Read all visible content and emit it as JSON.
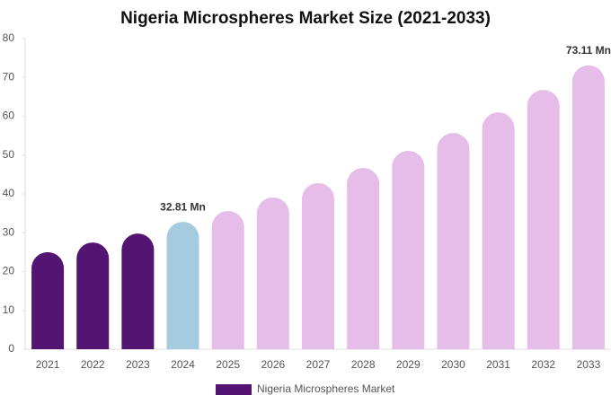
{
  "chart_data": {
    "type": "bar",
    "title": "Nigeria Microspheres Market Size (2021-2033)",
    "categories": [
      "2021",
      "2022",
      "2023",
      "2024",
      "2025",
      "2026",
      "2027",
      "2028",
      "2029",
      "2030",
      "2031",
      "2032",
      "2033"
    ],
    "series": [
      {
        "name": "Nigeria Microspheres Market",
        "color": "#541472",
        "colors": [
          "#541472",
          "#541472",
          "#541472",
          "#a4cbde",
          "#e6bde9",
          "#e6bde9",
          "#e6bde9",
          "#e6bde9",
          "#e6bde9",
          "#e6bde9",
          "#e6bde9",
          "#e6bde9",
          "#e6bde9"
        ],
        "values": [
          25.0,
          27.5,
          29.8,
          32.81,
          35.6,
          39.1,
          42.8,
          46.7,
          51.1,
          55.7,
          61.0,
          66.8,
          73.11
        ],
        "value_labels": [
          null,
          null,
          null,
          "32.81 Mn",
          null,
          null,
          null,
          null,
          null,
          null,
          null,
          null,
          "73.11 Mn"
        ]
      }
    ],
    "ylim": [
      0,
      80
    ],
    "yticks": [
      0,
      10,
      20,
      30,
      40,
      50,
      60,
      70,
      80
    ],
    "grid": false,
    "legend": "bottom"
  }
}
